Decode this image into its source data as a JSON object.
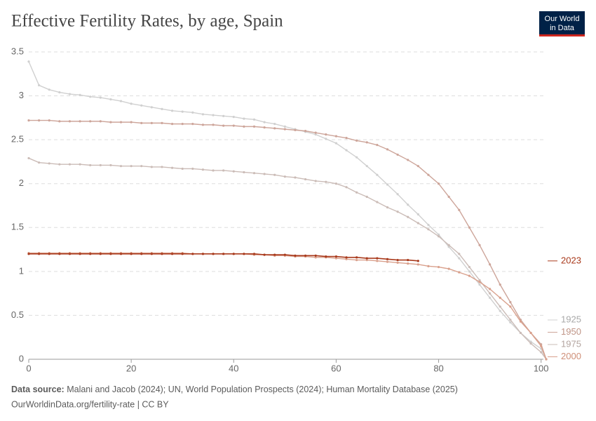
{
  "chart_data": {
    "type": "line",
    "title": "Effective Fertility Rates, by age, Spain",
    "logo": [
      "Our World",
      "in Data"
    ],
    "source_label": "Data source:",
    "source": "Malani and Jacob (2024); UN, World Population Prospects (2024); Human Mortality Database (2025)",
    "url": "OurWorldinData.org/fertility-rate | CC BY",
    "x": [
      0,
      2,
      4,
      6,
      8,
      10,
      12,
      14,
      16,
      18,
      20,
      22,
      24,
      26,
      28,
      30,
      32,
      34,
      36,
      38,
      40,
      42,
      44,
      46,
      48,
      50,
      52,
      54,
      56,
      58,
      60,
      62,
      64,
      66,
      68,
      70,
      72,
      74,
      76,
      78,
      80,
      82,
      84,
      86,
      88,
      90,
      92,
      94,
      96,
      98,
      100,
      101
    ],
    "xlim": [
      0,
      101
    ],
    "xticks": [
      0,
      20,
      40,
      60,
      80,
      100
    ],
    "ylim": [
      0,
      3.5
    ],
    "yticks": [
      0,
      0.5,
      1,
      1.5,
      2,
      2.5,
      3,
      3.5
    ],
    "grid": true,
    "series": [
      {
        "name": "1925",
        "color": "#d0d0d0",
        "label_color": "#a8a8a8",
        "values": [
          3.39,
          3.12,
          3.07,
          3.04,
          3.02,
          3.01,
          2.99,
          2.98,
          2.96,
          2.94,
          2.91,
          2.89,
          2.87,
          2.85,
          2.83,
          2.82,
          2.81,
          2.79,
          2.78,
          2.77,
          2.76,
          2.74,
          2.73,
          2.7,
          2.68,
          2.65,
          2.62,
          2.59,
          2.56,
          2.51,
          2.46,
          2.38,
          2.3,
          2.2,
          2.1,
          1.99,
          1.88,
          1.76,
          1.65,
          1.53,
          1.42,
          1.28,
          1.15,
          1.0,
          0.85,
          0.7,
          0.55,
          0.42,
          0.3,
          0.2,
          0.12,
          0
        ]
      },
      {
        "name": "1950",
        "color": "#cda59a",
        "label_color": "#bf9486",
        "values": [
          2.72,
          2.72,
          2.72,
          2.71,
          2.71,
          2.71,
          2.71,
          2.71,
          2.7,
          2.7,
          2.7,
          2.69,
          2.69,
          2.69,
          2.68,
          2.68,
          2.68,
          2.67,
          2.67,
          2.66,
          2.66,
          2.65,
          2.65,
          2.64,
          2.63,
          2.62,
          2.61,
          2.6,
          2.58,
          2.56,
          2.54,
          2.52,
          2.49,
          2.47,
          2.44,
          2.39,
          2.33,
          2.27,
          2.2,
          2.1,
          2.0,
          1.85,
          1.7,
          1.5,
          1.3,
          1.08,
          0.85,
          0.65,
          0.45,
          0.3,
          0.17,
          0
        ]
      },
      {
        "name": "1975",
        "color": "#cbbcb7",
        "label_color": "#b3a49f",
        "values": [
          2.29,
          2.24,
          2.23,
          2.22,
          2.22,
          2.22,
          2.21,
          2.21,
          2.21,
          2.2,
          2.2,
          2.2,
          2.19,
          2.19,
          2.18,
          2.17,
          2.17,
          2.16,
          2.15,
          2.15,
          2.14,
          2.13,
          2.12,
          2.11,
          2.1,
          2.08,
          2.07,
          2.05,
          2.03,
          2.02,
          2.0,
          1.96,
          1.9,
          1.85,
          1.79,
          1.73,
          1.68,
          1.62,
          1.55,
          1.48,
          1.4,
          1.3,
          1.2,
          1.05,
          0.9,
          0.75,
          0.6,
          0.45,
          0.3,
          0.18,
          0.08,
          0
        ]
      },
      {
        "name": "2000",
        "color": "#d9a08c",
        "label_color": "#cf8f78",
        "values": [
          1.21,
          1.21,
          1.21,
          1.21,
          1.21,
          1.21,
          1.21,
          1.21,
          1.21,
          1.21,
          1.21,
          1.21,
          1.21,
          1.21,
          1.21,
          1.21,
          1.2,
          1.2,
          1.2,
          1.2,
          1.2,
          1.2,
          1.19,
          1.19,
          1.18,
          1.18,
          1.17,
          1.17,
          1.16,
          1.16,
          1.15,
          1.14,
          1.13,
          1.13,
          1.12,
          1.11,
          1.1,
          1.09,
          1.08,
          1.06,
          1.05,
          1.03,
          0.99,
          0.95,
          0.88,
          0.8,
          0.7,
          0.6,
          0.43,
          0.3,
          0.15,
          0
        ]
      },
      {
        "name": "2023",
        "color": "#a93a1c",
        "label_color": "#a93a1c",
        "values": [
          1.2,
          1.2,
          1.2,
          1.2,
          1.2,
          1.2,
          1.2,
          1.2,
          1.2,
          1.2,
          1.2,
          1.2,
          1.2,
          1.2,
          1.2,
          1.2,
          1.2,
          1.2,
          1.2,
          1.2,
          1.2,
          1.2,
          1.2,
          1.19,
          1.19,
          1.19,
          1.18,
          1.18,
          1.18,
          1.17,
          1.17,
          1.16,
          1.16,
          1.15,
          1.15,
          1.14,
          1.13,
          1.13,
          1.12,
          null,
          null,
          null,
          null,
          null,
          null,
          null,
          null,
          null,
          null,
          null,
          null,
          null
        ]
      }
    ]
  }
}
